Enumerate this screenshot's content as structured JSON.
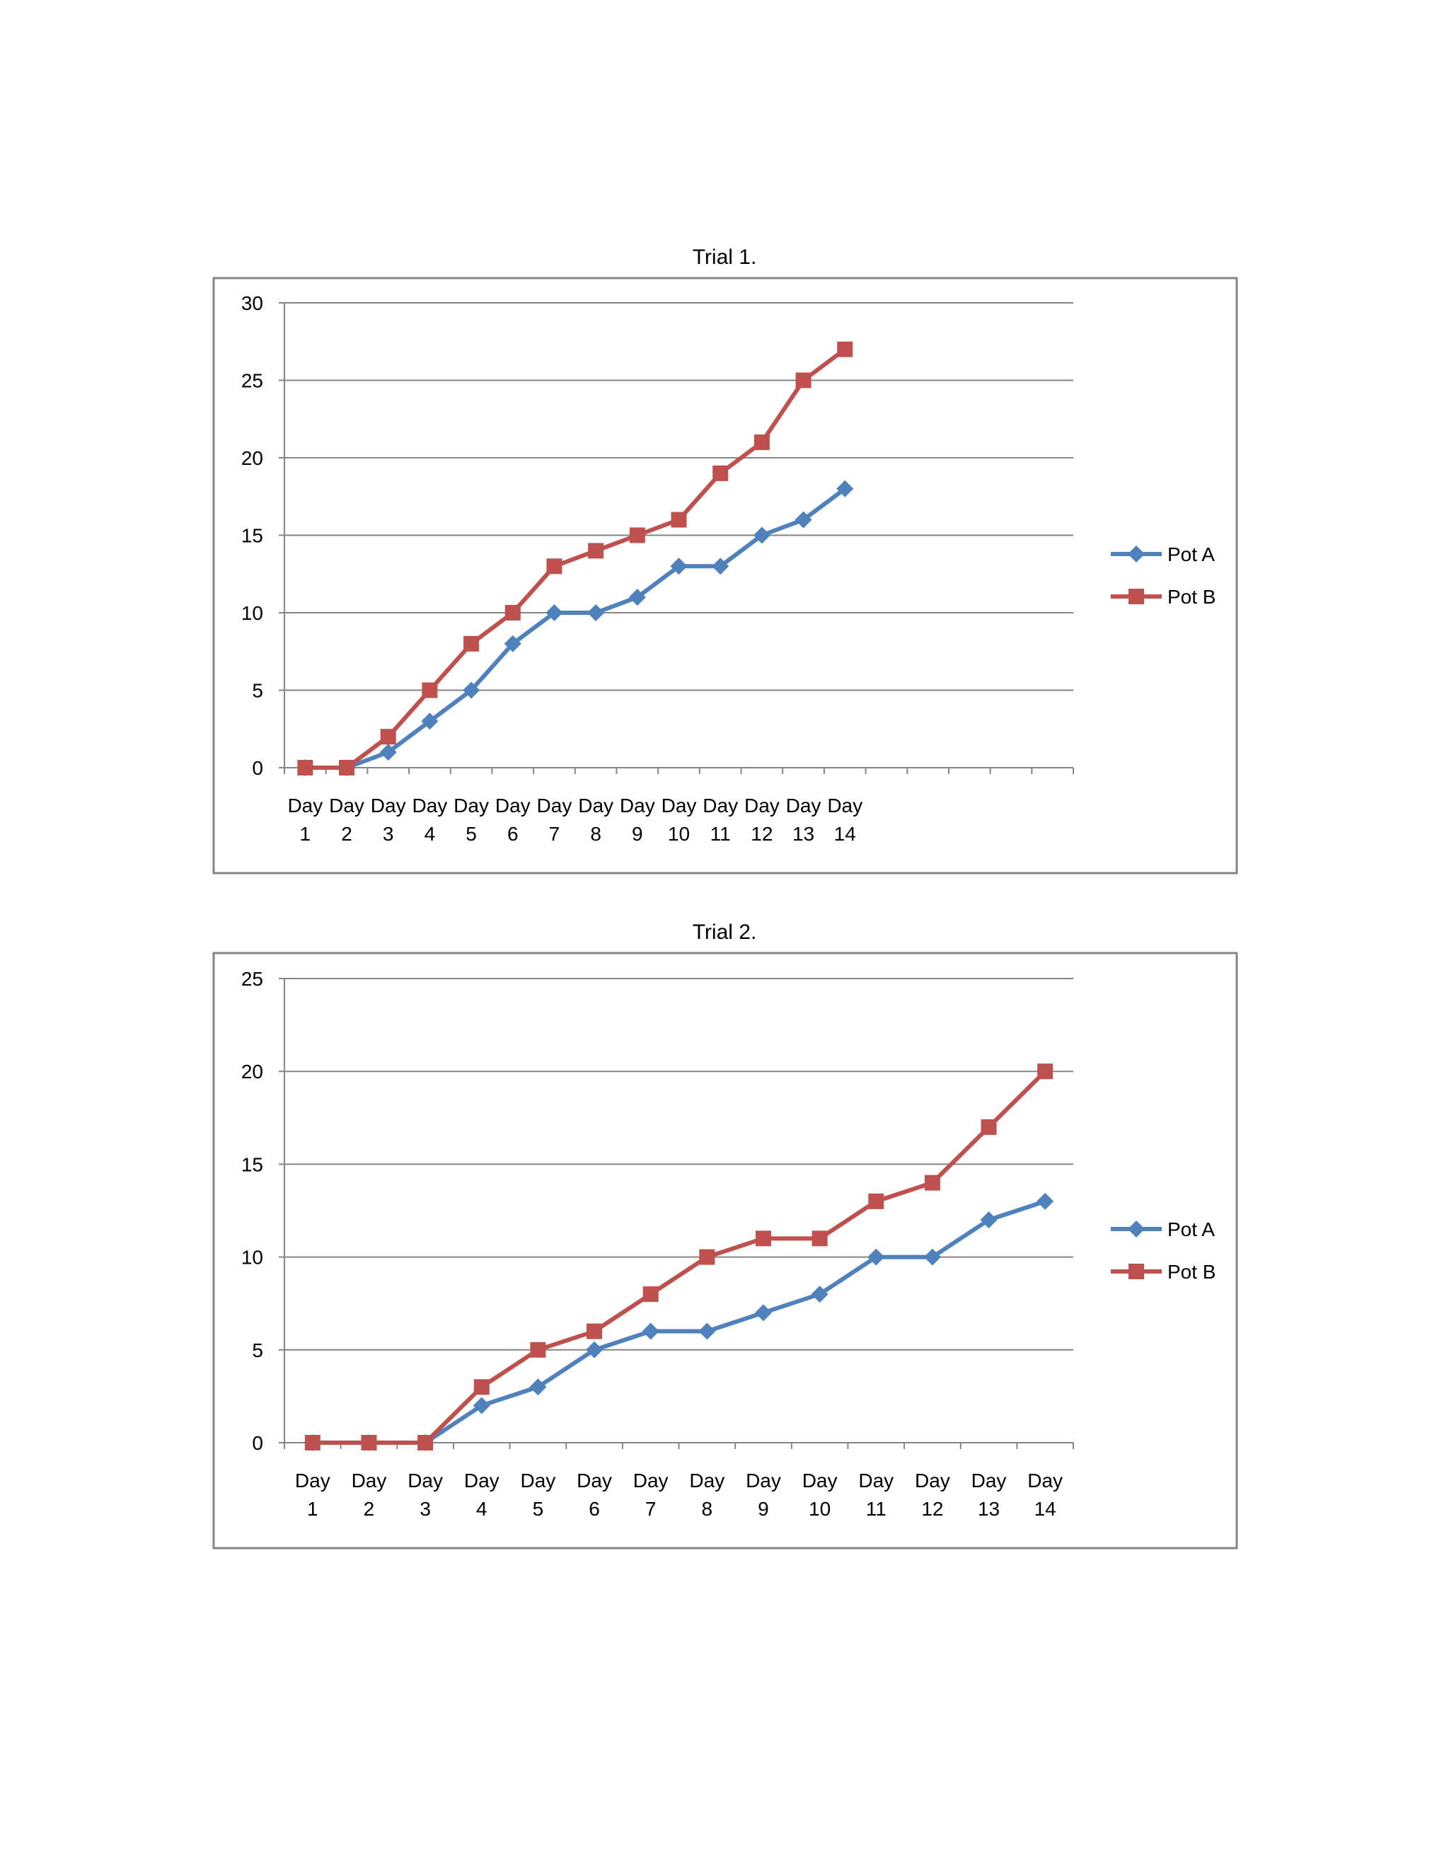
{
  "colors": {
    "pot_a": "#4F81BD",
    "pot_b": "#C0504D",
    "gridline": "#868686",
    "frame": "#868686"
  },
  "chart_data": [
    {
      "type": "line",
      "title": "Trial 1.",
      "categories": [
        "Day 1",
        "Day 2",
        "Day 3",
        "Day 4",
        "Day 5",
        "Day 6",
        "Day 7",
        "Day 8",
        "Day 9",
        "Day 10",
        "Day 11",
        "Day 12",
        "Day 13",
        "Day 14"
      ],
      "category_slots": 19,
      "ylim": [
        0,
        30
      ],
      "ytick_step": 5,
      "ytick_labels": [
        "0",
        "5",
        "10",
        "15",
        "20",
        "25",
        "30"
      ],
      "grid": true,
      "legend": "right",
      "series": [
        {
          "name": "Pot A",
          "marker": "diamond",
          "values": [
            0,
            0,
            1,
            3,
            5,
            8,
            10,
            10,
            11,
            13,
            13,
            15,
            16,
            18
          ]
        },
        {
          "name": "Pot B",
          "marker": "square",
          "values": [
            0,
            0,
            2,
            5,
            8,
            10,
            13,
            14,
            15,
            16,
            19,
            21,
            25,
            27
          ]
        }
      ]
    },
    {
      "type": "line",
      "title": "Trial 2.",
      "categories": [
        "Day 1",
        "Day 2",
        "Day 3",
        "Day 4",
        "Day 5",
        "Day 6",
        "Day 7",
        "Day 8",
        "Day 9",
        "Day 10",
        "Day 11",
        "Day 12",
        "Day 13",
        "Day 14"
      ],
      "category_slots": 14,
      "ylim": [
        0,
        25
      ],
      "ytick_step": 5,
      "ytick_labels": [
        "0",
        "5",
        "10",
        "15",
        "20",
        "25"
      ],
      "grid": true,
      "legend": "right",
      "series": [
        {
          "name": "Pot A",
          "marker": "diamond",
          "values": [
            0,
            0,
            0,
            2,
            3,
            5,
            6,
            6,
            7,
            8,
            10,
            10,
            12,
            13
          ]
        },
        {
          "name": "Pot B",
          "marker": "square",
          "values": [
            0,
            0,
            0,
            3,
            5,
            6,
            8,
            10,
            11,
            11,
            13,
            14,
            17,
            20
          ]
        }
      ]
    }
  ]
}
